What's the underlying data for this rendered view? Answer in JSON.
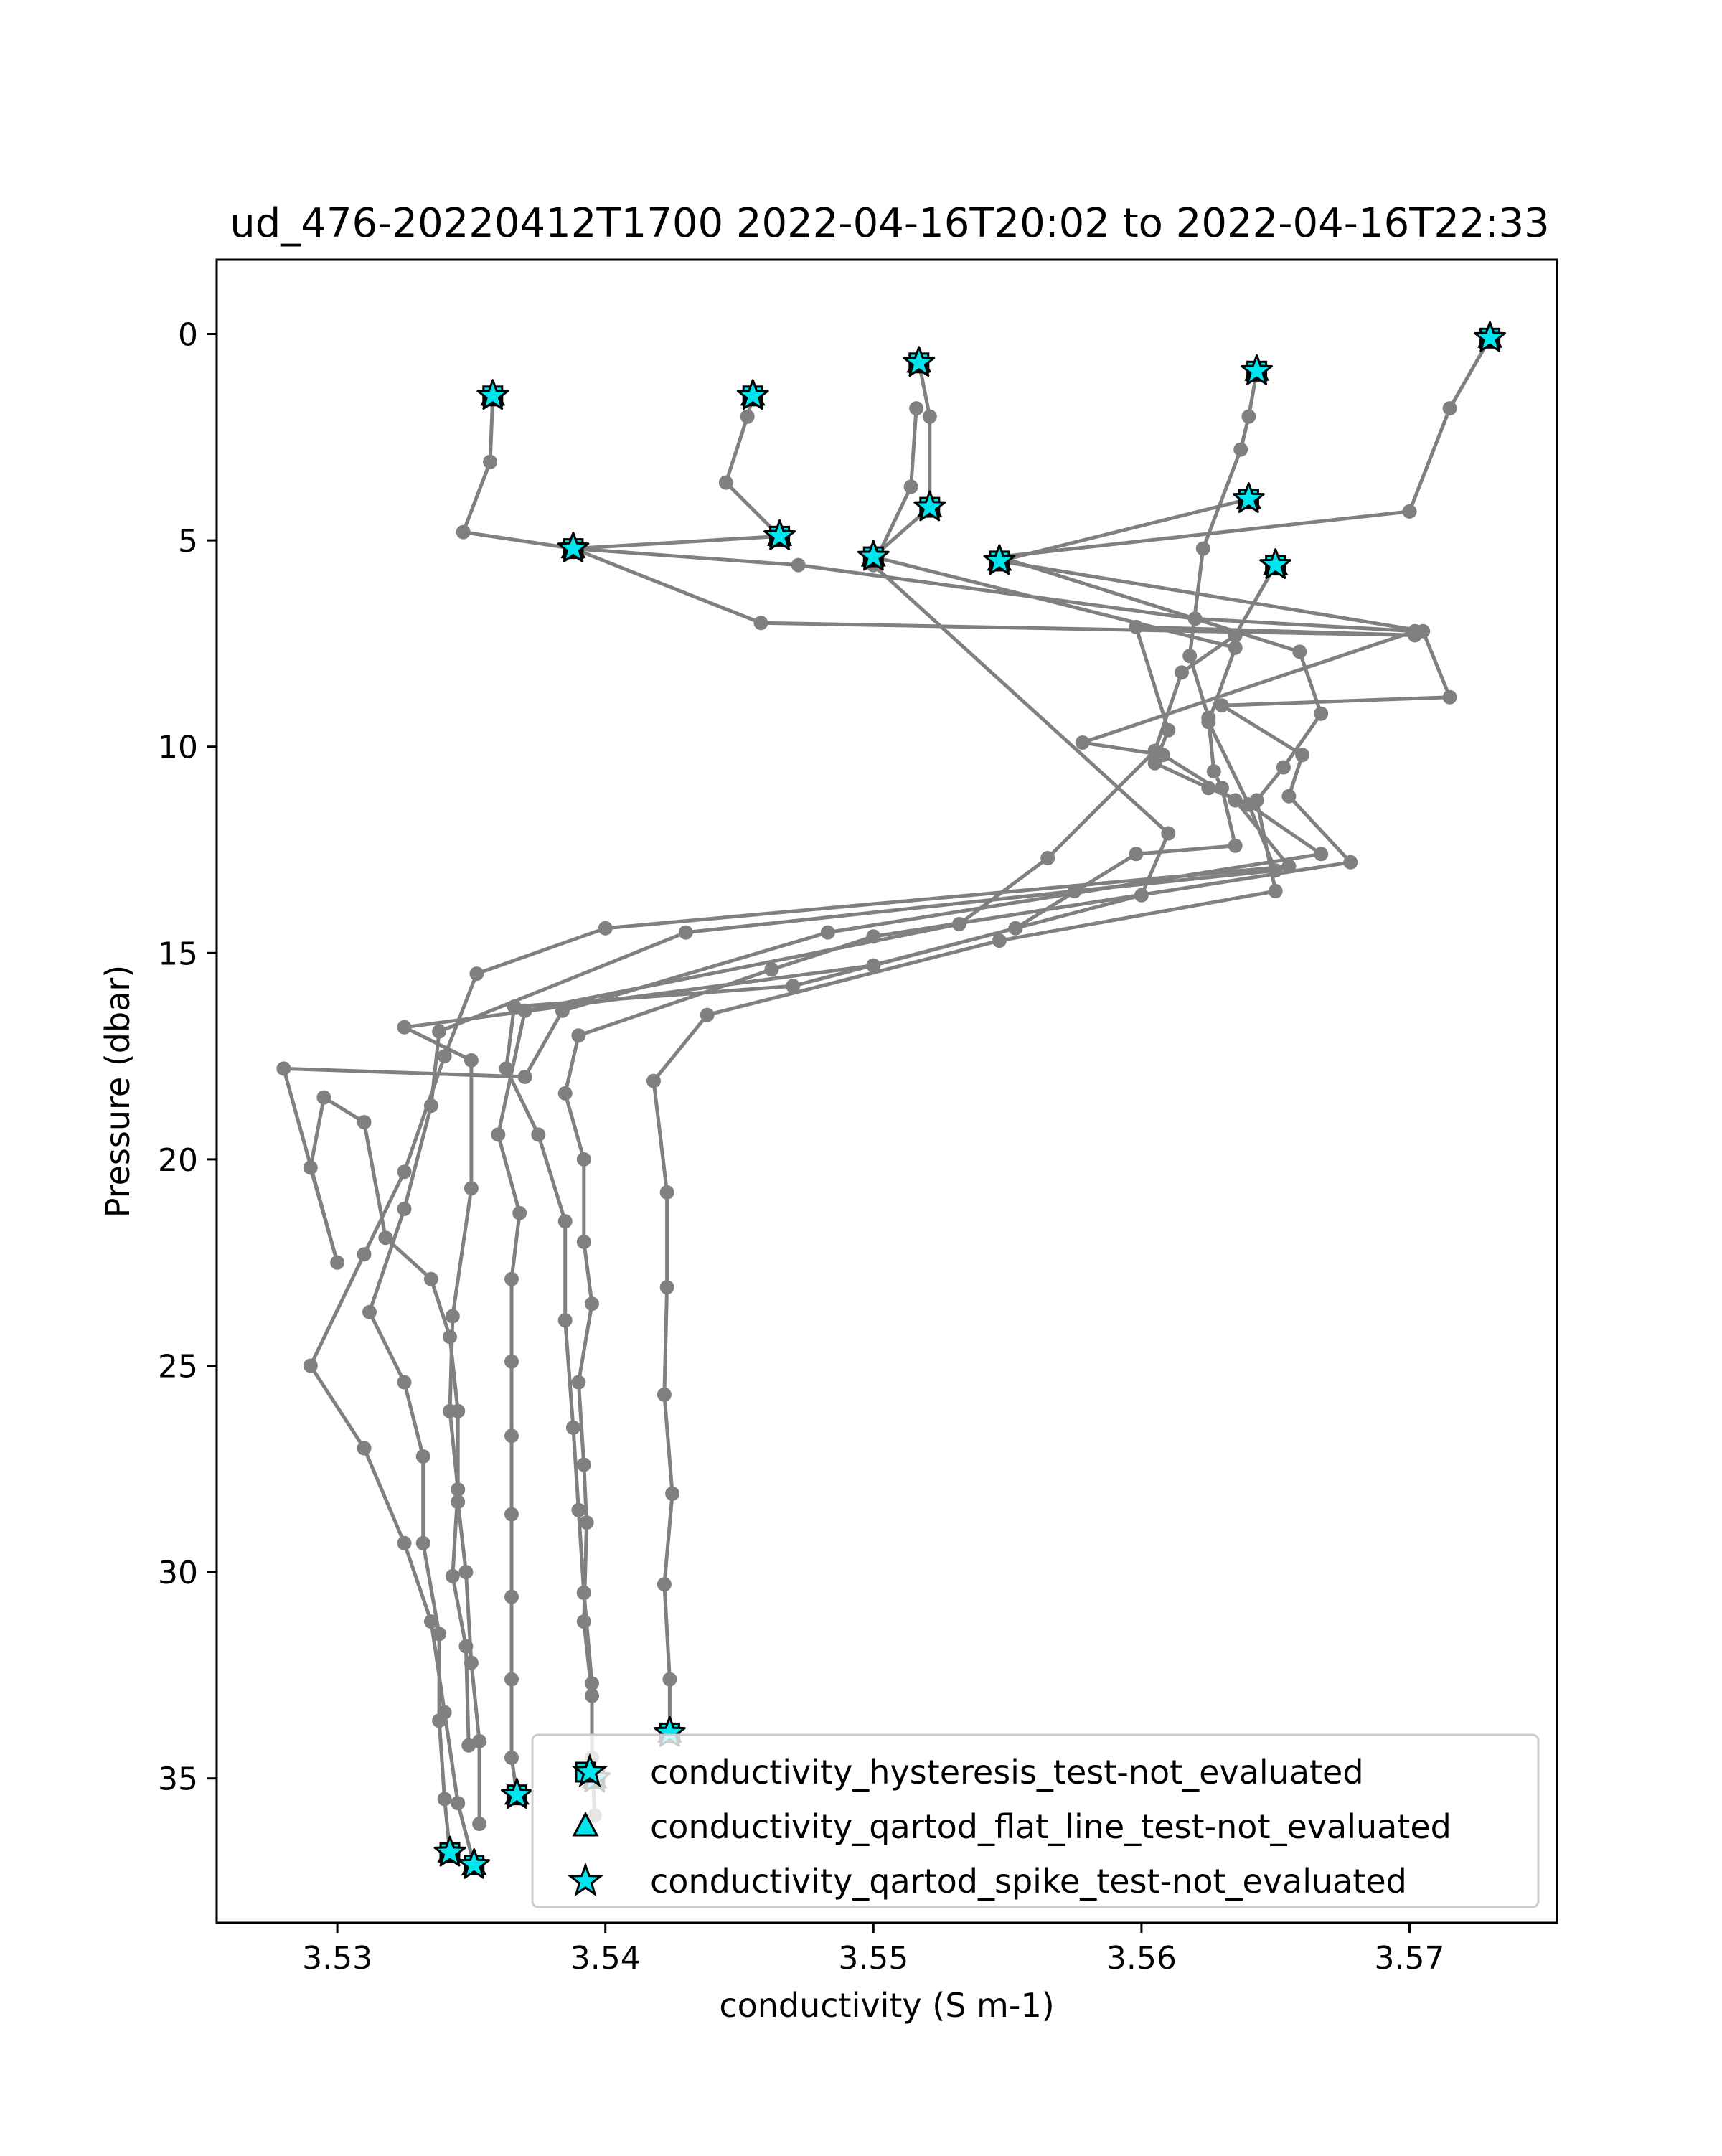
{
  "chart_data": {
    "type": "scatter",
    "title": "ud_476-20220412T1700 2022-04-16T20:02 to 2022-04-16T22:33",
    "xlabel": "conductivity (S m-1)",
    "ylabel": "Pressure (dbar)",
    "xlim": [
      3.5255,
      3.5755
    ],
    "ylim": [
      38.5,
      -1.8
    ],
    "y_inverted": true,
    "grid": false,
    "legend_position": "lower-right",
    "x_ticks": [
      {
        "value": 3.53,
        "label": "3.53"
      },
      {
        "value": 3.54,
        "label": "3.54"
      },
      {
        "value": 3.55,
        "label": "3.55"
      },
      {
        "value": 3.56,
        "label": "3.56"
      },
      {
        "value": 3.57,
        "label": "3.57"
      }
    ],
    "y_ticks": [
      {
        "value": 0,
        "label": "0"
      },
      {
        "value": 5,
        "label": "5"
      },
      {
        "value": 10,
        "label": "10"
      },
      {
        "value": 15,
        "label": "15"
      },
      {
        "value": 20,
        "label": "20"
      },
      {
        "value": 25,
        "label": "25"
      },
      {
        "value": 30,
        "label": "30"
      },
      {
        "value": 35,
        "label": "35"
      }
    ],
    "line_color": "#808080",
    "marker_color": "#00e5ee",
    "marker_edge_color": "#000000",
    "legend": [
      {
        "label": "conductivity_hysteresis_test-not_evaluated",
        "marker": "square"
      },
      {
        "label": "conductivity_qartod_flat_line_test-not_evaluated",
        "marker": "triangle"
      },
      {
        "label": "conductivity_qartod_spike_test-not_evaluated",
        "marker": "star"
      }
    ],
    "profiles": [
      {
        "points": [
          [
            3.5358,
            1.5
          ],
          [
            3.5357,
            3.1
          ],
          [
            3.5347,
            4.8
          ],
          [
            3.5388,
            5.2
          ],
          [
            3.5458,
            7.0
          ],
          [
            3.5702,
            7.3
          ],
          [
            3.5598,
            7.1
          ],
          [
            3.561,
            9.6
          ],
          [
            3.5605,
            10.4
          ],
          [
            3.5625,
            11.0
          ],
          [
            3.564,
            11.4
          ],
          [
            3.565,
            13.0
          ],
          [
            3.5575,
            13.5
          ],
          [
            3.543,
            14.5
          ],
          [
            3.5338,
            16.9
          ],
          [
            3.5335,
            18.7
          ],
          [
            3.5325,
            21.2
          ],
          [
            3.5312,
            23.7
          ],
          [
            3.5325,
            25.4
          ],
          [
            3.5332,
            27.2
          ],
          [
            3.5332,
            29.3
          ],
          [
            3.5338,
            31.5
          ],
          [
            3.5338,
            33.6
          ],
          [
            3.534,
            35.5
          ],
          [
            3.5342,
            36.8
          ]
        ]
      },
      {
        "points": [
          [
            3.5455,
            1.5
          ],
          [
            3.5453,
            2.0
          ],
          [
            3.5445,
            3.6
          ],
          [
            3.5465,
            4.9
          ],
          [
            3.5388,
            5.2
          ],
          [
            3.5472,
            5.6
          ],
          [
            3.562,
            6.9
          ],
          [
            3.5702,
            7.2
          ],
          [
            3.5578,
            9.9
          ],
          [
            3.5608,
            10.2
          ],
          [
            3.5635,
            11.3
          ],
          [
            3.5655,
            12.9
          ],
          [
            3.54,
            14.4
          ],
          [
            3.5352,
            15.5
          ],
          [
            3.534,
            17.5
          ],
          [
            3.5325,
            20.3
          ],
          [
            3.531,
            22.3
          ],
          [
            3.529,
            25.0
          ],
          [
            3.531,
            27.0
          ],
          [
            3.5325,
            29.3
          ],
          [
            3.5335,
            31.2
          ],
          [
            3.534,
            33.4
          ],
          [
            3.5345,
            35.6
          ],
          [
            3.5351,
            37.1
          ]
        ]
      },
      {
        "points": [
          [
            3.5517,
            0.7
          ],
          [
            3.5521,
            2.0
          ],
          [
            3.5521,
            4.2
          ],
          [
            3.55,
            5.4
          ],
          [
            3.5635,
            7.6
          ],
          [
            3.5625,
            9.4
          ],
          [
            3.564,
            11.4
          ],
          [
            3.5667,
            12.6
          ],
          [
            3.5483,
            14.5
          ],
          [
            3.5384,
            16.4
          ],
          [
            3.537,
            18.0
          ],
          [
            3.528,
            17.8
          ],
          [
            3.53,
            22.5
          ],
          [
            3.529,
            20.2
          ],
          [
            3.5295,
            18.5
          ],
          [
            3.531,
            19.1
          ],
          [
            3.5318,
            21.9
          ],
          [
            3.5335,
            22.9
          ],
          [
            3.5342,
            24.3
          ],
          [
            3.5345,
            26.1
          ],
          [
            3.5345,
            28.3
          ],
          [
            3.5348,
            30.0
          ],
          [
            3.535,
            32.2
          ],
          [
            3.5353,
            34.1
          ],
          [
            3.5353,
            36.1
          ]
        ]
      },
      {
        "points": [
          [
            3.5516,
            1.8
          ],
          [
            3.5514,
            3.7
          ],
          [
            3.55,
            5.6
          ],
          [
            3.561,
            12.1
          ],
          [
            3.56,
            13.6
          ],
          [
            3.55,
            15.3
          ],
          [
            3.5325,
            16.8
          ],
          [
            3.535,
            17.6
          ],
          [
            3.535,
            20.7
          ],
          [
            3.5343,
            23.8
          ],
          [
            3.5342,
            26.1
          ],
          [
            3.5345,
            28.0
          ],
          [
            3.5343,
            30.1
          ],
          [
            3.5348,
            31.8
          ],
          [
            3.5349,
            34.2
          ]
        ]
      },
      {
        "points": [
          [
            3.5643,
            0.9
          ],
          [
            3.564,
            2.0
          ],
          [
            3.5637,
            2.8
          ],
          [
            3.5623,
            5.2
          ],
          [
            3.5618,
            7.8
          ],
          [
            3.5625,
            9.3
          ],
          [
            3.5627,
            10.6
          ],
          [
            3.563,
            11.0
          ],
          [
            3.5635,
            12.4
          ],
          [
            3.5598,
            12.6
          ],
          [
            3.5553,
            14.4
          ],
          [
            3.547,
            15.8
          ],
          [
            3.5366,
            16.3
          ],
          [
            3.5363,
            17.8
          ],
          [
            3.5375,
            19.4
          ],
          [
            3.5385,
            21.5
          ],
          [
            3.5385,
            23.9
          ],
          [
            3.5388,
            26.5
          ],
          [
            3.539,
            28.5
          ],
          [
            3.5392,
            30.5
          ],
          [
            3.5395,
            32.7
          ],
          [
            3.5395,
            34.5
          ],
          [
            3.5396,
            35.9
          ]
        ]
      },
      {
        "points": [
          [
            3.564,
            4.0
          ],
          [
            3.5547,
            5.5
          ],
          [
            3.5705,
            7.2
          ],
          [
            3.5715,
            8.8
          ],
          [
            3.563,
            9.0
          ],
          [
            3.566,
            10.2
          ],
          [
            3.5655,
            11.2
          ],
          [
            3.5678,
            12.8
          ],
          [
            3.55,
            14.6
          ],
          [
            3.5462,
            15.4
          ],
          [
            3.539,
            17.0
          ],
          [
            3.5385,
            18.4
          ],
          [
            3.5392,
            20.0
          ],
          [
            3.5392,
            22.0
          ],
          [
            3.5395,
            23.5
          ],
          [
            3.539,
            25.4
          ],
          [
            3.5392,
            27.4
          ],
          [
            3.5393,
            28.8
          ],
          [
            3.5392,
            31.2
          ],
          [
            3.5395,
            33.0
          ],
          [
            3.5395,
            34.9
          ]
        ]
      },
      {
        "points": [
          [
            3.573,
            0.1
          ],
          [
            3.5715,
            1.8
          ],
          [
            3.57,
            4.3
          ],
          [
            3.5547,
            5.4
          ],
          [
            3.5659,
            7.7
          ],
          [
            3.5667,
            9.2
          ],
          [
            3.5653,
            10.5
          ],
          [
            3.5643,
            11.3
          ],
          [
            3.565,
            13.5
          ],
          [
            3.5547,
            14.7
          ],
          [
            3.5438,
            16.5
          ],
          [
            3.5418,
            18.1
          ],
          [
            3.5423,
            20.8
          ],
          [
            3.5423,
            23.1
          ],
          [
            3.5422,
            25.7
          ],
          [
            3.5425,
            28.1
          ],
          [
            3.5422,
            30.3
          ],
          [
            3.5424,
            32.6
          ],
          [
            3.5424,
            33.9
          ]
        ]
      },
      {
        "points": [
          [
            3.565,
            5.6
          ],
          [
            3.5635,
            7.3
          ],
          [
            3.5615,
            8.2
          ],
          [
            3.5605,
            10.1
          ],
          [
            3.5565,
            12.7
          ],
          [
            3.5532,
            14.3
          ],
          [
            3.537,
            16.4
          ],
          [
            3.536,
            19.4
          ],
          [
            3.5368,
            21.3
          ],
          [
            3.5365,
            22.9
          ],
          [
            3.5365,
            24.9
          ],
          [
            3.5365,
            26.7
          ],
          [
            3.5365,
            28.6
          ],
          [
            3.5365,
            30.6
          ],
          [
            3.5365,
            32.6
          ],
          [
            3.5365,
            34.5
          ],
          [
            3.5367,
            35.4
          ]
        ]
      }
    ],
    "flag_points": [
      [
        3.5358,
        1.5
      ],
      [
        3.5455,
        1.5
      ],
      [
        3.5517,
        0.7
      ],
      [
        3.5643,
        0.9
      ],
      [
        3.573,
        0.1
      ],
      [
        3.564,
        4.0
      ],
      [
        3.5521,
        4.2
      ],
      [
        3.5465,
        4.9
      ],
      [
        3.5388,
        5.2
      ],
      [
        3.55,
        5.4
      ],
      [
        3.5547,
        5.5
      ],
      [
        3.565,
        5.6
      ],
      [
        3.5424,
        33.9
      ],
      [
        3.5396,
        35.0
      ],
      [
        3.5367,
        35.4
      ],
      [
        3.5342,
        36.8
      ],
      [
        3.5351,
        37.1
      ]
    ]
  }
}
